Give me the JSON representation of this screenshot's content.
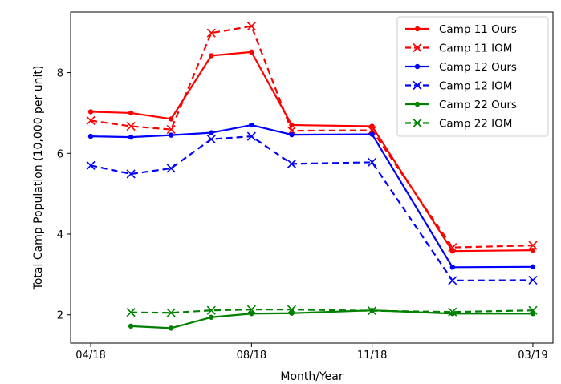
{
  "chart_data": {
    "type": "line",
    "title": "",
    "xlabel": "Month/Year",
    "ylabel": "Total Camp Population (10,000 per unit)",
    "x_ticks": [
      {
        "x": 0,
        "label": "04/18"
      },
      {
        "x": 4,
        "label": "08/18"
      },
      {
        "x": 7,
        "label": "11/18"
      },
      {
        "x": 11,
        "label": "03/19"
      }
    ],
    "y_ticks": [
      2,
      4,
      6,
      8
    ],
    "xlim": [
      -0.5,
      11.5
    ],
    "ylim": [
      1.3,
      9.5
    ],
    "legend_position": "top-right",
    "series": [
      {
        "name": "Camp 11 Ours",
        "color": "#ff0000",
        "dash": "solid",
        "marker": "dot",
        "x": [
          0,
          1,
          2,
          3,
          4,
          5,
          7,
          9,
          11
        ],
        "y": [
          7.03,
          7.0,
          6.85,
          8.42,
          8.51,
          6.7,
          6.67,
          3.58,
          3.6
        ]
      },
      {
        "name": "Camp 11 IOM",
        "color": "#ff0000",
        "dash": "dashed",
        "marker": "x",
        "x": [
          0,
          1,
          2,
          3,
          4,
          5,
          7,
          9,
          11
        ],
        "y": [
          6.81,
          6.67,
          6.59,
          8.98,
          9.15,
          6.56,
          6.57,
          3.67,
          3.72
        ]
      },
      {
        "name": "Camp 12 Ours",
        "color": "#0000ff",
        "dash": "solid",
        "marker": "dot",
        "x": [
          0,
          1,
          2,
          3,
          4,
          5,
          7,
          9,
          11
        ],
        "y": [
          6.42,
          6.4,
          6.45,
          6.51,
          6.7,
          6.46,
          6.47,
          3.18,
          3.19
        ]
      },
      {
        "name": "Camp 12 IOM",
        "color": "#0000ff",
        "dash": "dashed",
        "marker": "x",
        "x": [
          0,
          1,
          2,
          3,
          4,
          5,
          7,
          9,
          11
        ],
        "y": [
          5.7,
          5.49,
          5.63,
          6.35,
          6.42,
          5.74,
          5.78,
          2.85,
          2.86
        ]
      },
      {
        "name": "Camp 22 Ours",
        "color": "#008000",
        "dash": "solid",
        "marker": "dot",
        "x": [
          1,
          2,
          3,
          4,
          5,
          7,
          9,
          11
        ],
        "y": [
          1.72,
          1.67,
          1.94,
          2.03,
          2.04,
          2.11,
          2.03,
          2.03
        ]
      },
      {
        "name": "Camp 22 IOM",
        "color": "#008000",
        "dash": "dashed",
        "marker": "x",
        "x": [
          1,
          2,
          3,
          4,
          5,
          7,
          9,
          11
        ],
        "y": [
          2.06,
          2.05,
          2.11,
          2.13,
          2.13,
          2.1,
          2.07,
          2.11
        ]
      }
    ]
  }
}
